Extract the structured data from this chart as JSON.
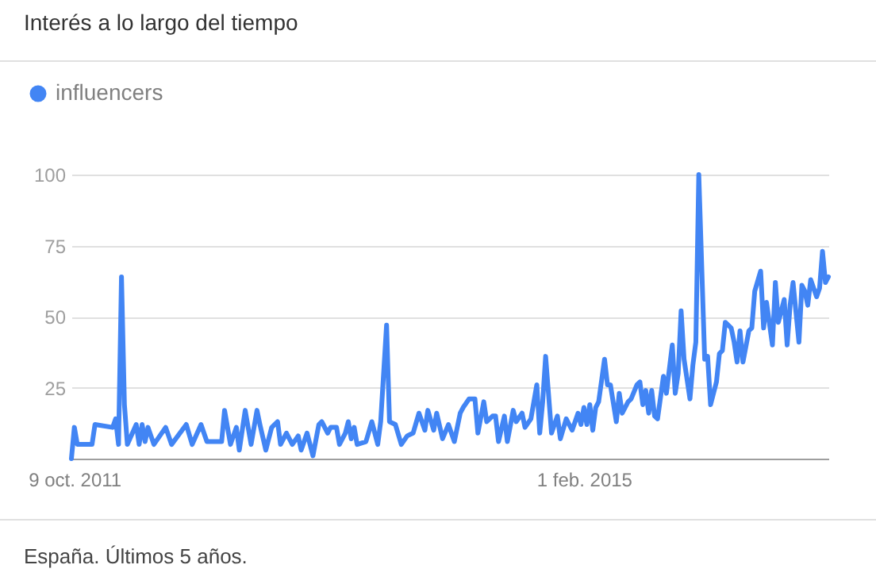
{
  "chart_data": {
    "type": "line",
    "title": "Interés a lo largo del tiempo",
    "annotations": [
      "España. Últimos 5 años."
    ],
    "series": [
      {
        "name": "influencers",
        "color": "#4285f4",
        "x": [
          "2011-10-02",
          "2011-10-09",
          "2011-10-16",
          "2011-11-20",
          "2011-11-27",
          "2012-01-08",
          "2012-01-15",
          "2012-01-22",
          "2012-01-29",
          "2012-02-05",
          "2012-02-12",
          "2012-03-04",
          "2012-03-11",
          "2012-03-18",
          "2012-03-25",
          "2012-04-01",
          "2012-04-15",
          "2012-05-13",
          "2012-05-27",
          "2012-07-01",
          "2012-07-15",
          "2012-08-05",
          "2012-08-19",
          "2012-09-23",
          "2012-09-30",
          "2012-10-14",
          "2012-10-28",
          "2012-11-04",
          "2012-11-18",
          "2012-12-02",
          "2012-12-16",
          "2012-12-23",
          "2013-01-06",
          "2013-01-20",
          "2013-02-03",
          "2013-02-10",
          "2013-02-24",
          "2013-03-10",
          "2013-03-24",
          "2013-03-31",
          "2013-04-14",
          "2013-04-28",
          "2013-05-12",
          "2013-05-19",
          "2013-06-02",
          "2013-06-09",
          "2013-06-23",
          "2013-06-30",
          "2013-07-14",
          "2013-07-21",
          "2013-07-28",
          "2013-08-04",
          "2013-08-11",
          "2013-09-01",
          "2013-09-15",
          "2013-09-29",
          "2013-10-06",
          "2013-10-20",
          "2013-10-27",
          "2013-11-10",
          "2013-11-24",
          "2013-12-08",
          "2013-12-22",
          "2014-01-05",
          "2014-01-19",
          "2014-01-26",
          "2014-02-09",
          "2014-02-16",
          "2014-03-02",
          "2014-03-16",
          "2014-03-30",
          "2014-04-13",
          "2014-04-20",
          "2014-05-04",
          "2014-05-18",
          "2014-05-25",
          "2014-06-08",
          "2014-06-15",
          "2014-06-29",
          "2014-07-06",
          "2014-07-13",
          "2014-07-27",
          "2014-08-03",
          "2014-08-17",
          "2014-08-24",
          "2014-09-07",
          "2014-09-14",
          "2014-09-28",
          "2014-10-12",
          "2014-10-19",
          "2014-10-26",
          "2014-11-02",
          "2014-11-16",
          "2014-11-30",
          "2014-12-07",
          "2014-12-21",
          "2014-12-28",
          "2015-01-04",
          "2015-01-18",
          "2015-01-25",
          "2015-02-01",
          "2015-02-08",
          "2015-02-15",
          "2015-02-22",
          "2015-03-01",
          "2015-03-08",
          "2015-03-22",
          "2015-03-29",
          "2015-04-05",
          "2015-04-19",
          "2015-04-26",
          "2015-05-03",
          "2015-05-17",
          "2015-05-24",
          "2015-06-07",
          "2015-06-14",
          "2015-06-21",
          "2015-06-28",
          "2015-07-05",
          "2015-07-12",
          "2015-07-19",
          "2015-07-26",
          "2015-08-09",
          "2015-08-16",
          "2015-08-30",
          "2015-09-06",
          "2015-09-13",
          "2015-09-20",
          "2015-09-27",
          "2015-10-11",
          "2015-10-18",
          "2015-10-25",
          "2015-11-01",
          "2015-11-15",
          "2015-11-22",
          "2015-11-29",
          "2015-12-13",
          "2015-12-20",
          "2015-12-27",
          "2016-01-03",
          "2016-01-17",
          "2016-01-24",
          "2016-01-31",
          "2016-02-07",
          "2016-02-14",
          "2016-02-28",
          "2016-03-06",
          "2016-03-13",
          "2016-03-27",
          "2016-04-03",
          "2016-04-10",
          "2016-04-24",
          "2016-05-01",
          "2016-05-08",
          "2016-05-22",
          "2016-05-29",
          "2016-06-05",
          "2016-06-12",
          "2016-06-26",
          "2016-07-03",
          "2016-07-10",
          "2016-07-17",
          "2016-07-24",
          "2016-08-07",
          "2016-08-14",
          "2016-08-21",
          "2016-08-28",
          "2016-09-04"
        ],
        "values": [
          0,
          11,
          5,
          5,
          12,
          11,
          14,
          5,
          64,
          19,
          5,
          12,
          5,
          12,
          6,
          11,
          5,
          11,
          5,
          12,
          5,
          12,
          6,
          6,
          17,
          5,
          11,
          3,
          17,
          5,
          17,
          12,
          3,
          11,
          13,
          5,
          9,
          5,
          8,
          3,
          9,
          1,
          12,
          13,
          9,
          11,
          11,
          5,
          9,
          13,
          7,
          11,
          5,
          6,
          13,
          5,
          13,
          47,
          13,
          12,
          5,
          8,
          9,
          16,
          10,
          17,
          10,
          16,
          7,
          12,
          6,
          16,
          18,
          21,
          21,
          9,
          20,
          13,
          15,
          15,
          6,
          15,
          6,
          17,
          13,
          16,
          11,
          14,
          26,
          9,
          20,
          36,
          9,
          15,
          7,
          14,
          12,
          10,
          16,
          12,
          18,
          12,
          19,
          10,
          18,
          20,
          35,
          26,
          26,
          13,
          23,
          16,
          20,
          21,
          26,
          27,
          19,
          24,
          16,
          24,
          15,
          14,
          29,
          23,
          40,
          23,
          30,
          52,
          35,
          21,
          33,
          41,
          100,
          35,
          36,
          19,
          27,
          37,
          38,
          48,
          46,
          41,
          34,
          45,
          34,
          45,
          46,
          59,
          66,
          46,
          55,
          40,
          62,
          48,
          56,
          40,
          54,
          62,
          41,
          61,
          59,
          54,
          63,
          57,
          60,
          73,
          62,
          64
        ]
      }
    ],
    "xlim": [
      "2011-10-02",
      "2016-09-04"
    ],
    "xticks": [
      {
        "value": "2011-10-09",
        "label": "9 oct. 2011"
      },
      {
        "value": "2015-02-01",
        "label": "1 feb. 2015"
      }
    ],
    "ylim": [
      0,
      100
    ],
    "yticks": [
      25,
      50,
      75,
      100
    ],
    "grid": "y",
    "legend": "top left",
    "marker": "none",
    "line_style": "solid"
  }
}
